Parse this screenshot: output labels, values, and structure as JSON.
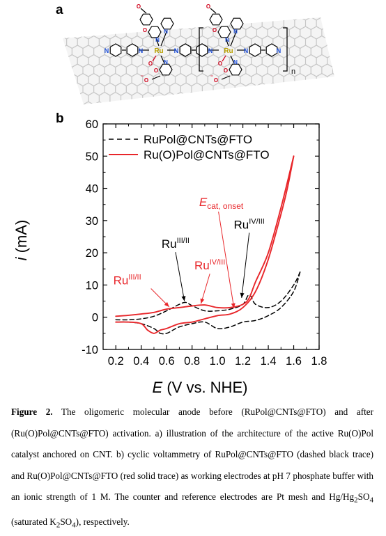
{
  "panel_a": {
    "label": "a",
    "atoms": {
      "ru": "Ru",
      "n": "N",
      "o": "O",
      "o_minus": "O",
      "minus": "⁻",
      "repeat_n": "n"
    }
  },
  "panel_b": {
    "label": "b"
  },
  "chart_data": {
    "type": "line",
    "xlabel": "E (V vs. NHE)",
    "xlabel_italic": "E",
    "xlabel_rest": " (V vs. NHE)",
    "ylabel": "i (mA)",
    "ylabel_italic": "i",
    "ylabel_rest": " (mA)",
    "xlim": [
      0.1,
      1.8
    ],
    "ylim": [
      -10,
      60
    ],
    "x_ticks": [
      "0.2",
      "0.4",
      "0.6",
      "0.8",
      "1.0",
      "1.2",
      "1.4",
      "1.6",
      "1.8"
    ],
    "y_ticks": [
      "-10",
      "0",
      "10",
      "20",
      "30",
      "40",
      "50",
      "60"
    ],
    "legend_position": "top-left",
    "series": [
      {
        "name": "RuPol@CNTs@FTO",
        "color": "#000000",
        "style": "dashed",
        "forward": [
          [
            0.2,
            -0.8
          ],
          [
            0.3,
            -0.8
          ],
          [
            0.4,
            -0.5
          ],
          [
            0.5,
            0.3
          ],
          [
            0.6,
            2.0
          ],
          [
            0.7,
            4.0
          ],
          [
            0.75,
            4.6
          ],
          [
            0.8,
            3.6
          ],
          [
            0.9,
            2.0
          ],
          [
            1.0,
            2.0
          ],
          [
            1.1,
            2.5
          ],
          [
            1.2,
            4.0
          ],
          [
            1.25,
            7.0
          ],
          [
            1.3,
            4.0
          ],
          [
            1.4,
            3.0
          ],
          [
            1.5,
            5.0
          ],
          [
            1.6,
            10.0
          ],
          [
            1.65,
            14.0
          ]
        ],
        "reverse": [
          [
            1.65,
            14.0
          ],
          [
            1.6,
            8.0
          ],
          [
            1.5,
            3.0
          ],
          [
            1.4,
            0.5
          ],
          [
            1.3,
            -1.0
          ],
          [
            1.2,
            -1.5
          ],
          [
            1.1,
            -3.0
          ],
          [
            1.0,
            -3.5
          ],
          [
            0.9,
            -1.5
          ],
          [
            0.8,
            -2.0
          ],
          [
            0.7,
            -3.0
          ],
          [
            0.65,
            -4.0
          ],
          [
            0.6,
            -5.0
          ],
          [
            0.55,
            -5.0
          ],
          [
            0.5,
            -3.5
          ],
          [
            0.4,
            -2.0
          ],
          [
            0.3,
            -1.5
          ],
          [
            0.2,
            -1.5
          ]
        ]
      },
      {
        "name": "Ru(O)Pol@CNTs@FTO",
        "color": "#e8262a",
        "style": "solid",
        "forward": [
          [
            0.2,
            0.3
          ],
          [
            0.3,
            0.6
          ],
          [
            0.4,
            1.0
          ],
          [
            0.5,
            1.5
          ],
          [
            0.6,
            2.5
          ],
          [
            0.7,
            3.0
          ],
          [
            0.8,
            3.5
          ],
          [
            0.9,
            3.8
          ],
          [
            1.0,
            3.0
          ],
          [
            1.1,
            3.0
          ],
          [
            1.2,
            4.0
          ],
          [
            1.25,
            6.0
          ],
          [
            1.3,
            11.0
          ],
          [
            1.4,
            20.0
          ],
          [
            1.5,
            34.0
          ],
          [
            1.6,
            50.0
          ]
        ],
        "reverse": [
          [
            1.6,
            50.0
          ],
          [
            1.55,
            40.0
          ],
          [
            1.5,
            32.0
          ],
          [
            1.4,
            18.0
          ],
          [
            1.3,
            8.0
          ],
          [
            1.2,
            3.0
          ],
          [
            1.1,
            1.0
          ],
          [
            1.0,
            0.5
          ],
          [
            0.9,
            -0.5
          ],
          [
            0.8,
            -1.5
          ],
          [
            0.7,
            -2.0
          ],
          [
            0.6,
            -3.5
          ],
          [
            0.55,
            -4.0
          ],
          [
            0.5,
            -5.0
          ],
          [
            0.45,
            -4.0
          ],
          [
            0.4,
            -2.0
          ],
          [
            0.3,
            -1.5
          ],
          [
            0.2,
            -1.5
          ]
        ]
      }
    ],
    "annotations": [
      {
        "name": "ru-iii-ii-black",
        "base": "Ru",
        "sup": "III/II",
        "color": "#000000",
        "text_x": 0.67,
        "text_y": 21.5,
        "arrow_to": [
          0.74,
          5.0
        ]
      },
      {
        "name": "ru-iv-iii-black",
        "base": "Ru",
        "sup": "IV/III",
        "color": "#000000",
        "text_x": 1.25,
        "text_y": 27.5,
        "arrow_to": [
          1.19,
          6.0
        ]
      },
      {
        "name": "ru-iv-iii-red",
        "base": "Ru",
        "sup": "IV/III",
        "color": "#e8262a",
        "text_x": 0.94,
        "text_y": 14.8,
        "arrow_to": [
          0.87,
          4.2
        ]
      },
      {
        "name": "ru-iii-ii-red",
        "base": "Ru",
        "sup": "III/II",
        "color": "#e8262a",
        "text_x": 0.29,
        "text_y": 10.2,
        "arrow_to": [
          0.62,
          3.2
        ]
      },
      {
        "name": "e-cat-onset-red",
        "base": "E",
        "sub": "cat, onset",
        "color": "#e8262a",
        "text_x": 1.03,
        "text_y": 34.5,
        "arrow_to": [
          1.13,
          2.8
        ]
      }
    ]
  },
  "caption": {
    "label": "Figure 2.",
    "text": " The oligomeric molecular anode before (RuPol@CNTs@FTO) and after (Ru(O)Pol@CNTs@FTO) activation. a) illustration of the architecture of the active Ru(O)Pol catalyst anchored on CNT. b) cyclic voltammetry of RuPol@CNTs@FTO (dashed black trace) and Ru(O)Pol@CNTs@FTO (red solid trace) as working electrodes at pH 7 phosphate buffer with an ionic strength of 1 M. The counter and reference electrodes are Pt mesh and Hg/Hg",
    "sub_2": "2",
    "text_2": "SO",
    "sub_4": "4",
    "text_3": " (saturated K",
    "sub_2b": "2",
    "text_4": "SO",
    "sub_4b": "4",
    "text_5": "), respectively."
  },
  "colors": {
    "red": "#e8262a",
    "ru_gold": "#b8a000",
    "n_blue": "#1e4fd8",
    "o_red": "#d0021b",
    "graphene": "#c8c8c8"
  }
}
